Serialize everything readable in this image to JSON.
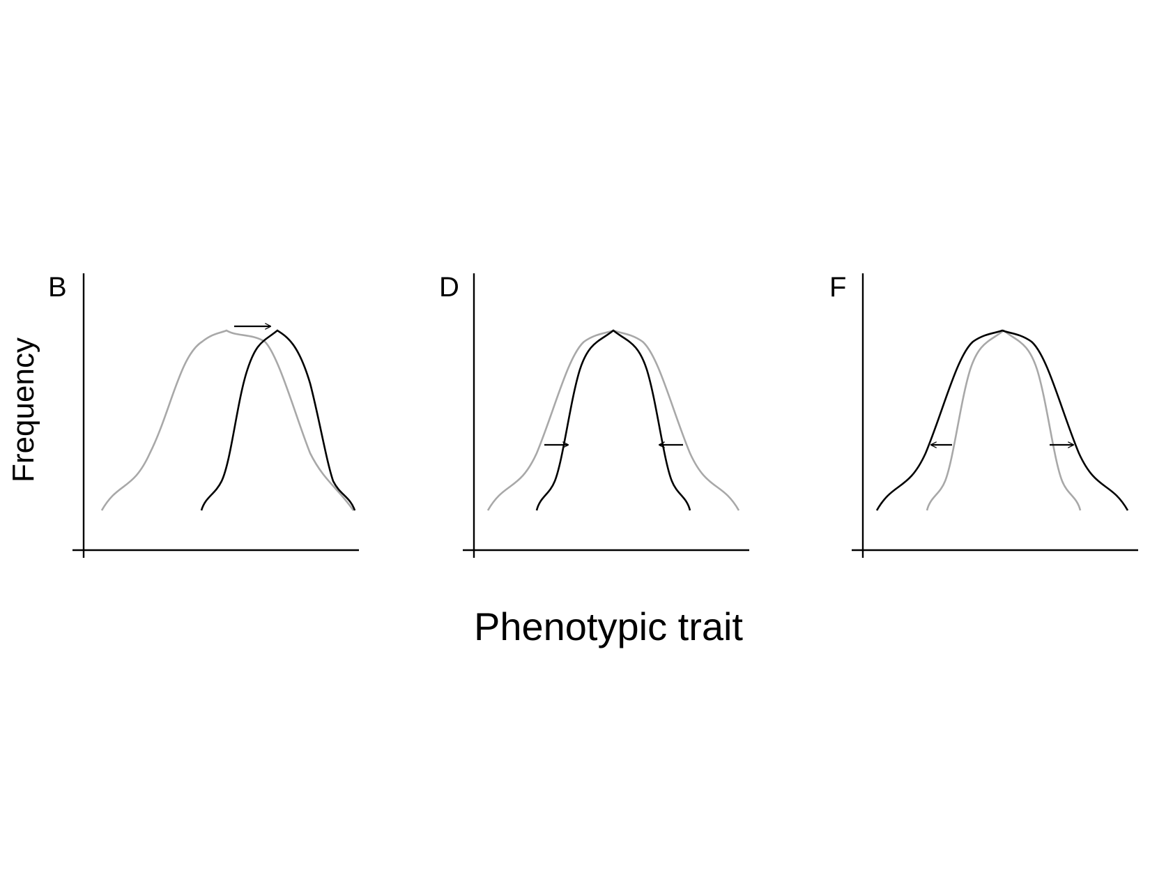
{
  "figure": {
    "y_label": "Frequency",
    "x_label": "Phenotypic trait",
    "panels": [
      {
        "letter": "B",
        "selection": "directional",
        "arrows": [
          "right"
        ]
      },
      {
        "letter": "D",
        "selection": "stabilizing",
        "arrows": [
          "inward",
          "inward"
        ]
      },
      {
        "letter": "F",
        "selection": "disruptive",
        "arrows": [
          "outward",
          "outward"
        ]
      }
    ],
    "colors": {
      "original_distribution": "#a8a8a8",
      "selected_distribution": "#000000",
      "axes": "#000000",
      "arrows": "#000000"
    }
  }
}
